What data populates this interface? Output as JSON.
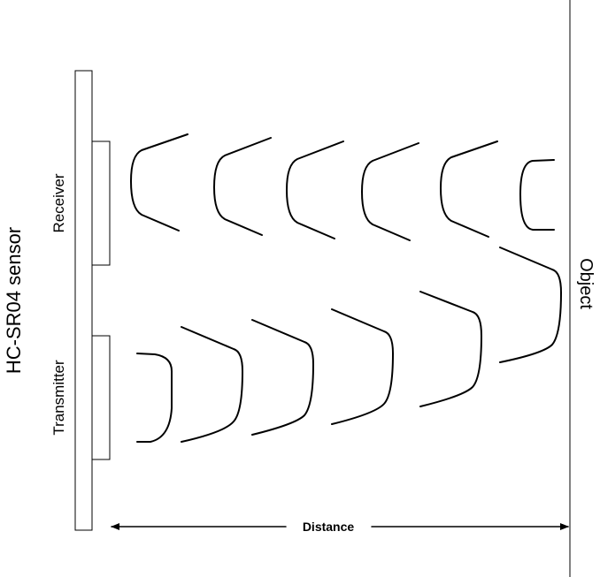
{
  "labels": {
    "sensor": "HC-SR04 sensor",
    "receiver": "Receiver",
    "transmitter": "Transmitter",
    "object": "Object",
    "distance": "Distance"
  }
}
